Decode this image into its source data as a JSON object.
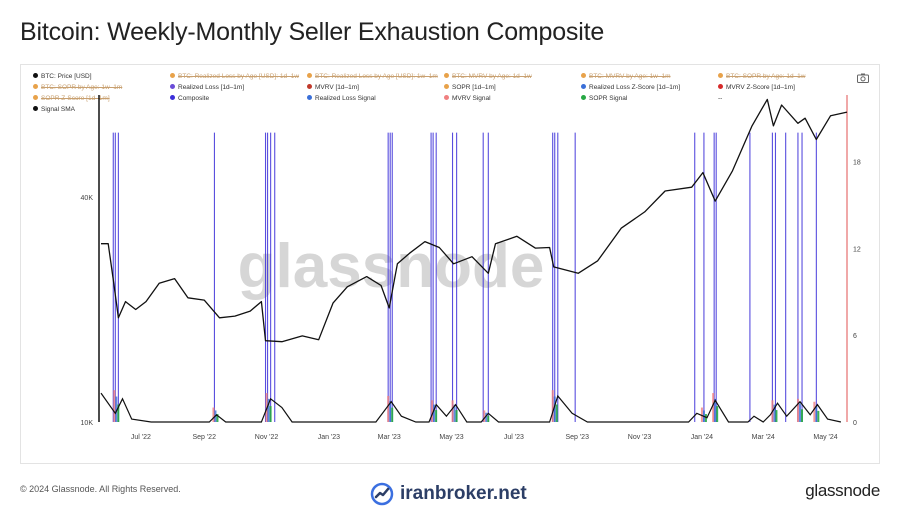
{
  "title": "Bitcoin: Weekly-Monthly Seller Exhaustion Composite",
  "legend": [
    {
      "label": "BTC: Price [USD]",
      "color": "#111111",
      "active": true
    },
    {
      "label": "BTC: Realized Loss by Age [USD]: 1d–1w",
      "color": "#e8a24a",
      "active": false
    },
    {
      "label": "BTC: Realized Loss by Age [USD]: 1w–1m",
      "color": "#e8a24a",
      "active": false
    },
    {
      "label": "BTC: MVRV by Age: 1d–1w",
      "color": "#e8a24a",
      "active": false
    },
    {
      "label": "BTC: MVRV by Age: 1w–1m",
      "color": "#e8a24a",
      "active": false
    },
    {
      "label": "BTC: SOPR by Age: 1d–1w",
      "color": "#e8a24a",
      "active": false
    },
    {
      "label": "BTC: SOPR by Age: 1w–1m",
      "color": "#e8a24a",
      "active": false
    },
    {
      "label": "Realized Loss [1d–1m]",
      "color": "#6a4cd8",
      "active": true
    },
    {
      "label": "MVRV [1d–1m]",
      "color": "#c0392b",
      "active": true
    },
    {
      "label": "SOPR [1d–1m]",
      "color": "#e8a24a",
      "active": true
    },
    {
      "label": "Realized Loss Z-Score [1d–1m]",
      "color": "#3a6fd8",
      "active": true
    },
    {
      "label": "MVRV Z-Score [1d–1m]",
      "color": "#d62a2a",
      "active": true
    },
    {
      "label": "SOPR Z-Score [1d–1m]",
      "color": "#e8a24a",
      "active": false
    },
    {
      "label": "Composite",
      "color": "#3b2fd9",
      "active": true
    },
    {
      "label": "Realized Loss Signal",
      "color": "#3a6fd8",
      "active": true
    },
    {
      "label": "MVRV Signal",
      "color": "#f08080",
      "active": true
    },
    {
      "label": "SOPR Signal",
      "color": "#27a844",
      "active": true
    },
    {
      "label": "--",
      "color": "",
      "active": true
    },
    {
      "label": "Signal SMA",
      "color": "#111111",
      "active": true
    }
  ],
  "watermark": "glassnode",
  "footer": {
    "copyright": "© 2024 Glassnode. All Rights Reserved.",
    "brand": "iranbroker.net",
    "logo": "glassnode"
  },
  "icons": {
    "camera": "camera-icon",
    "brand": "iranbroker-logo-icon"
  },
  "chart_data": {
    "type": "line",
    "x_ticks": [
      "Jul '22",
      "Sep '22",
      "Nov '22",
      "Jan '23",
      "Mar '23",
      "May '23",
      "Jul '23",
      "Sep '23",
      "Nov '23",
      "Jan '24",
      "Mar '24",
      "May '24"
    ],
    "x_range": [
      "2022-06-01",
      "2024-05-31"
    ],
    "y_left": {
      "scale": "log",
      "ticks": [
        {
          "value": 10000,
          "label": "10K"
        },
        {
          "value": 40000,
          "label": "40K"
        }
      ],
      "range": [
        10000,
        75000
      ]
    },
    "y_right": {
      "ticks": [
        0,
        6,
        12,
        18
      ],
      "range": [
        0,
        22.6
      ]
    },
    "price_series": {
      "name": "BTC: Price [USD]",
      "color": "#111111",
      "points": [
        [
          "2022-06-01",
          30000
        ],
        [
          "2022-06-08",
          30000
        ],
        [
          "2022-06-13",
          24000
        ],
        [
          "2022-06-18",
          19000
        ],
        [
          "2022-06-25",
          21000
        ],
        [
          "2022-07-05",
          20000
        ],
        [
          "2022-07-15",
          21000
        ],
        [
          "2022-07-28",
          23500
        ],
        [
          "2022-08-12",
          24200
        ],
        [
          "2022-08-25",
          21500
        ],
        [
          "2022-09-10",
          21200
        ],
        [
          "2022-09-25",
          19000
        ],
        [
          "2022-10-10",
          19200
        ],
        [
          "2022-10-25",
          19800
        ],
        [
          "2022-11-05",
          21000
        ],
        [
          "2022-11-09",
          16500
        ],
        [
          "2022-11-25",
          16400
        ],
        [
          "2022-12-15",
          17000
        ],
        [
          "2022-12-31",
          16600
        ],
        [
          "2023-01-14",
          20800
        ],
        [
          "2023-01-28",
          23000
        ],
        [
          "2023-02-16",
          24500
        ],
        [
          "2023-03-02",
          23200
        ],
        [
          "2023-03-10",
          20200
        ],
        [
          "2023-03-18",
          26500
        ],
        [
          "2023-03-30",
          28300
        ],
        [
          "2023-04-14",
          30400
        ],
        [
          "2023-04-28",
          29300
        ],
        [
          "2023-05-12",
          26500
        ],
        [
          "2023-05-30",
          27700
        ],
        [
          "2023-06-15",
          25000
        ],
        [
          "2023-06-22",
          30000
        ],
        [
          "2023-07-13",
          31400
        ],
        [
          "2023-07-31",
          29200
        ],
        [
          "2023-08-14",
          29300
        ],
        [
          "2023-08-18",
          26000
        ],
        [
          "2023-09-11",
          25000
        ],
        [
          "2023-09-30",
          27000
        ],
        [
          "2023-10-23",
          33000
        ],
        [
          "2023-11-15",
          36500
        ],
        [
          "2023-12-05",
          41500
        ],
        [
          "2023-12-31",
          42500
        ],
        [
          "2024-01-11",
          46500
        ],
        [
          "2024-01-23",
          39000
        ],
        [
          "2024-02-09",
          47000
        ],
        [
          "2024-02-28",
          62000
        ],
        [
          "2024-03-14",
          73000
        ],
        [
          "2024-03-20",
          62000
        ],
        [
          "2024-03-28",
          70500
        ],
        [
          "2024-04-13",
          63000
        ],
        [
          "2024-04-20",
          65000
        ],
        [
          "2024-05-01",
          57000
        ],
        [
          "2024-05-15",
          66000
        ],
        [
          "2024-05-31",
          67500
        ]
      ]
    },
    "composite_signal_dates": [
      "2022-06-13",
      "2022-06-15",
      "2022-06-18",
      "2022-09-20",
      "2022-11-09",
      "2022-11-11",
      "2022-11-14",
      "2022-11-18",
      "2023-03-09",
      "2023-03-11",
      "2023-03-13",
      "2023-04-20",
      "2023-04-22",
      "2023-04-25",
      "2023-05-11",
      "2023-05-15",
      "2023-06-10",
      "2023-06-15",
      "2023-08-17",
      "2023-08-19",
      "2023-08-22",
      "2023-09-08",
      "2024-01-03",
      "2024-01-12",
      "2024-01-22",
      "2024-01-24",
      "2024-02-26",
      "2024-03-19",
      "2024-03-22",
      "2024-04-01",
      "2024-04-13",
      "2024-04-17",
      "2024-05-01"
    ],
    "signal_sma": {
      "name": "Signal SMA",
      "color": "#111111",
      "points": [
        [
          "2022-06-01",
          2.0
        ],
        [
          "2022-06-15",
          0.6
        ],
        [
          "2022-06-22",
          1.6
        ],
        [
          "2022-07-01",
          0.2
        ],
        [
          "2022-07-20",
          0
        ],
        [
          "2022-09-15",
          0
        ],
        [
          "2022-09-22",
          0.5
        ],
        [
          "2022-10-01",
          0
        ],
        [
          "2022-11-05",
          0
        ],
        [
          "2022-11-14",
          1.6
        ],
        [
          "2022-11-25",
          1.0
        ],
        [
          "2022-12-05",
          0
        ],
        [
          "2023-02-25",
          0
        ],
        [
          "2023-03-12",
          1.4
        ],
        [
          "2023-03-22",
          0.4
        ],
        [
          "2023-04-05",
          0
        ],
        [
          "2023-04-18",
          0
        ],
        [
          "2023-04-25",
          1.2
        ],
        [
          "2023-05-05",
          0.4
        ],
        [
          "2023-05-14",
          1.2
        ],
        [
          "2023-05-25",
          0
        ],
        [
          "2023-06-08",
          0
        ],
        [
          "2023-06-15",
          0.6
        ],
        [
          "2023-06-25",
          0
        ],
        [
          "2023-08-14",
          0
        ],
        [
          "2023-08-22",
          1.8
        ],
        [
          "2023-09-05",
          0.6
        ],
        [
          "2023-09-20",
          0
        ],
        [
          "2023-12-28",
          0
        ],
        [
          "2024-01-05",
          0.6
        ],
        [
          "2024-01-15",
          0.3
        ],
        [
          "2024-01-23",
          1.5
        ],
        [
          "2024-02-05",
          0
        ],
        [
          "2024-02-24",
          0
        ],
        [
          "2024-03-01",
          0.4
        ],
        [
          "2024-03-10",
          0
        ],
        [
          "2024-03-17",
          0.5
        ],
        [
          "2024-03-24",
          1.3
        ],
        [
          "2024-04-02",
          0.4
        ],
        [
          "2024-04-15",
          1.4
        ],
        [
          "2024-04-25",
          0.5
        ],
        [
          "2024-05-02",
          1.2
        ],
        [
          "2024-05-12",
          0.2
        ],
        [
          "2024-05-25",
          0
        ]
      ]
    },
    "signal_clusters": [
      {
        "date": "2022-06-16",
        "height": 2.2
      },
      {
        "date": "2022-09-21",
        "height": 1.0
      },
      {
        "date": "2022-11-12",
        "height": 2.0
      },
      {
        "date": "2023-03-11",
        "height": 1.8
      },
      {
        "date": "2023-04-23",
        "height": 1.5
      },
      {
        "date": "2023-05-13",
        "height": 1.5
      },
      {
        "date": "2023-06-13",
        "height": 0.8
      },
      {
        "date": "2023-08-19",
        "height": 2.2
      },
      {
        "date": "2024-01-12",
        "height": 1.0
      },
      {
        "date": "2024-01-23",
        "height": 2.0
      },
      {
        "date": "2024-03-21",
        "height": 1.5
      },
      {
        "date": "2024-04-15",
        "height": 1.6
      },
      {
        "date": "2024-05-01",
        "height": 1.4
      }
    ]
  }
}
